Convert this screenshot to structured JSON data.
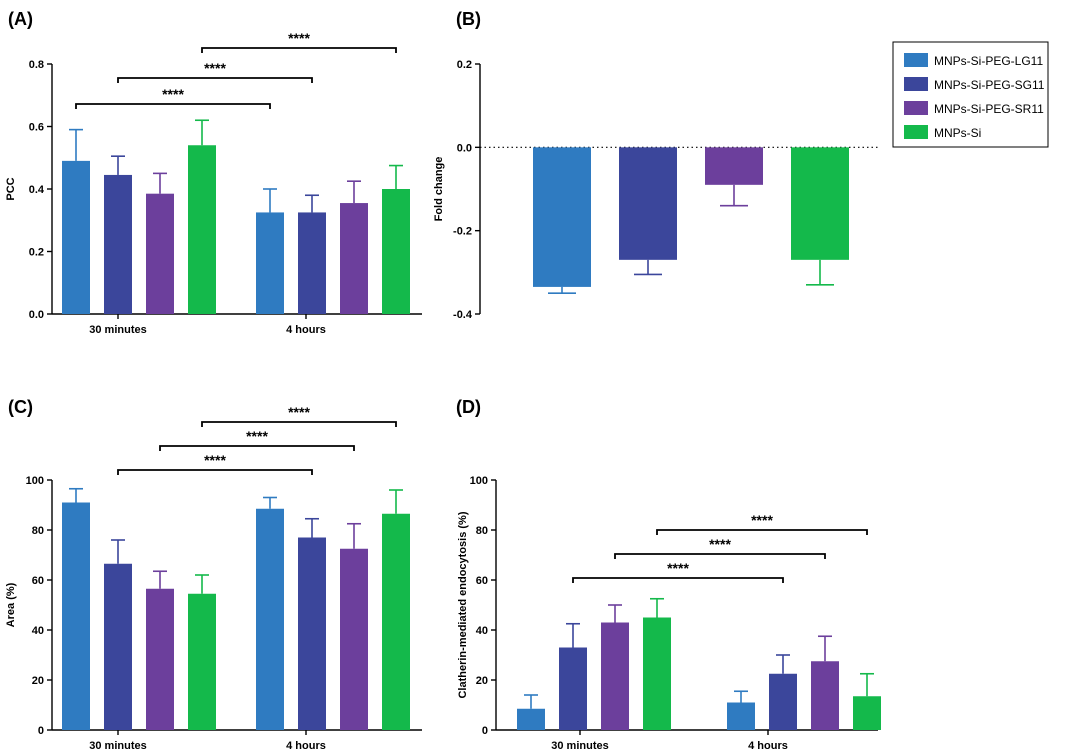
{
  "colors": {
    "MNPs-Si-PEG-LG11": "#2f7bc1",
    "MNPs-Si-PEG-SG11": "#3b469b",
    "MNPs-Si-PEG-SR11": "#6c3f9c",
    "MNPs-Si": "#14b94b"
  },
  "legend": {
    "items": [
      "MNPs-Si-PEG-LG11",
      "MNPs-Si-PEG-SG11",
      "MNPs-Si-PEG-SR11",
      "MNPs-Si"
    ]
  },
  "chart_data": [
    {
      "panel": "(A)",
      "type": "bar",
      "ylabel": "PCC",
      "ylim": [
        0,
        0.8
      ],
      "yticks": [
        "0.0",
        "0.2",
        "0.4",
        "0.6",
        "0.8"
      ],
      "categories": [
        "30 minutes",
        "4 hours"
      ],
      "series": [
        {
          "name": "MNPs-Si-PEG-LG11",
          "values": [
            0.49,
            0.325
          ],
          "errors": [
            0.1,
            0.075
          ]
        },
        {
          "name": "MNPs-Si-PEG-SG11",
          "values": [
            0.445,
            0.325
          ],
          "errors": [
            0.06,
            0.055
          ]
        },
        {
          "name": "MNPs-Si-PEG-SR11",
          "values": [
            0.385,
            0.355
          ],
          "errors": [
            0.065,
            0.07
          ]
        },
        {
          "name": "MNPs-Si",
          "values": [
            0.54,
            0.4
          ],
          "errors": [
            0.08,
            0.075
          ]
        }
      ],
      "significance": [
        {
          "from": [
            0,
            0
          ],
          "to": [
            1,
            0
          ],
          "label": "****"
        },
        {
          "from": [
            0,
            1
          ],
          "to": [
            1,
            1
          ],
          "label": "****"
        },
        {
          "from": [
            0,
            3
          ],
          "to": [
            1,
            3
          ],
          "label": "****"
        }
      ]
    },
    {
      "panel": "(B)",
      "type": "bar",
      "ylabel": "Fold change",
      "ylim": [
        -0.4,
        0.2
      ],
      "yticks": [
        "-0.4",
        "-0.2",
        "0.0",
        "0.2"
      ],
      "categories": [
        "MNPs-Si-PEG-LG11",
        "MNPs-Si-PEG-SG11",
        "MNPs-Si-PEG-SR11",
        "MNPs-Si"
      ],
      "values": [
        -0.335,
        -0.27,
        -0.09,
        -0.27
      ],
      "errors": [
        0.015,
        0.035,
        0.05,
        0.06
      ],
      "reference_line": 0
    },
    {
      "panel": "(C)",
      "type": "bar",
      "ylabel": "Area (%)",
      "ylim": [
        0,
        100
      ],
      "yticks": [
        "0",
        "20",
        "40",
        "60",
        "80",
        "100"
      ],
      "categories": [
        "30 minutes",
        "4 hours"
      ],
      "series": [
        {
          "name": "MNPs-Si-PEG-LG11",
          "values": [
            91,
            88.5
          ],
          "errors": [
            5.5,
            4.5
          ]
        },
        {
          "name": "MNPs-Si-PEG-SG11",
          "values": [
            66.5,
            77
          ],
          "errors": [
            9.5,
            7.5
          ]
        },
        {
          "name": "MNPs-Si-PEG-SR11",
          "values": [
            56.5,
            72.5
          ],
          "errors": [
            7,
            10
          ]
        },
        {
          "name": "MNPs-Si",
          "values": [
            54.5,
            86.5
          ],
          "errors": [
            7.5,
            9.5
          ]
        }
      ],
      "significance": [
        {
          "from": [
            0,
            1
          ],
          "to": [
            1,
            1
          ],
          "label": "****"
        },
        {
          "from": [
            0,
            2
          ],
          "to": [
            1,
            2
          ],
          "label": "****"
        },
        {
          "from": [
            0,
            3
          ],
          "to": [
            1,
            3
          ],
          "label": "****"
        }
      ]
    },
    {
      "panel": "(D)",
      "type": "bar",
      "ylabel": "Clatherin-mediated endocytosis (%)",
      "ylim": [
        0,
        100
      ],
      "yticks": [
        "0",
        "20",
        "40",
        "60",
        "80",
        "100"
      ],
      "categories": [
        "30 minutes",
        "4 hours"
      ],
      "series": [
        {
          "name": "MNPs-Si-PEG-LG11",
          "values": [
            8.5,
            11
          ],
          "errors": [
            5.5,
            4.5
          ]
        },
        {
          "name": "MNPs-Si-PEG-SG11",
          "values": [
            33,
            22.5
          ],
          "errors": [
            9.5,
            7.5
          ]
        },
        {
          "name": "MNPs-Si-PEG-SR11",
          "values": [
            43,
            27.5
          ],
          "errors": [
            7,
            10
          ]
        },
        {
          "name": "MNPs-Si",
          "values": [
            45,
            13.5
          ],
          "errors": [
            7.5,
            9
          ]
        }
      ],
      "significance": [
        {
          "from": [
            0,
            1
          ],
          "to": [
            1,
            1
          ],
          "label": "****"
        },
        {
          "from": [
            0,
            2
          ],
          "to": [
            1,
            2
          ],
          "label": "****"
        },
        {
          "from": [
            0,
            3
          ],
          "to": [
            1,
            3
          ],
          "label": "****"
        }
      ]
    }
  ]
}
